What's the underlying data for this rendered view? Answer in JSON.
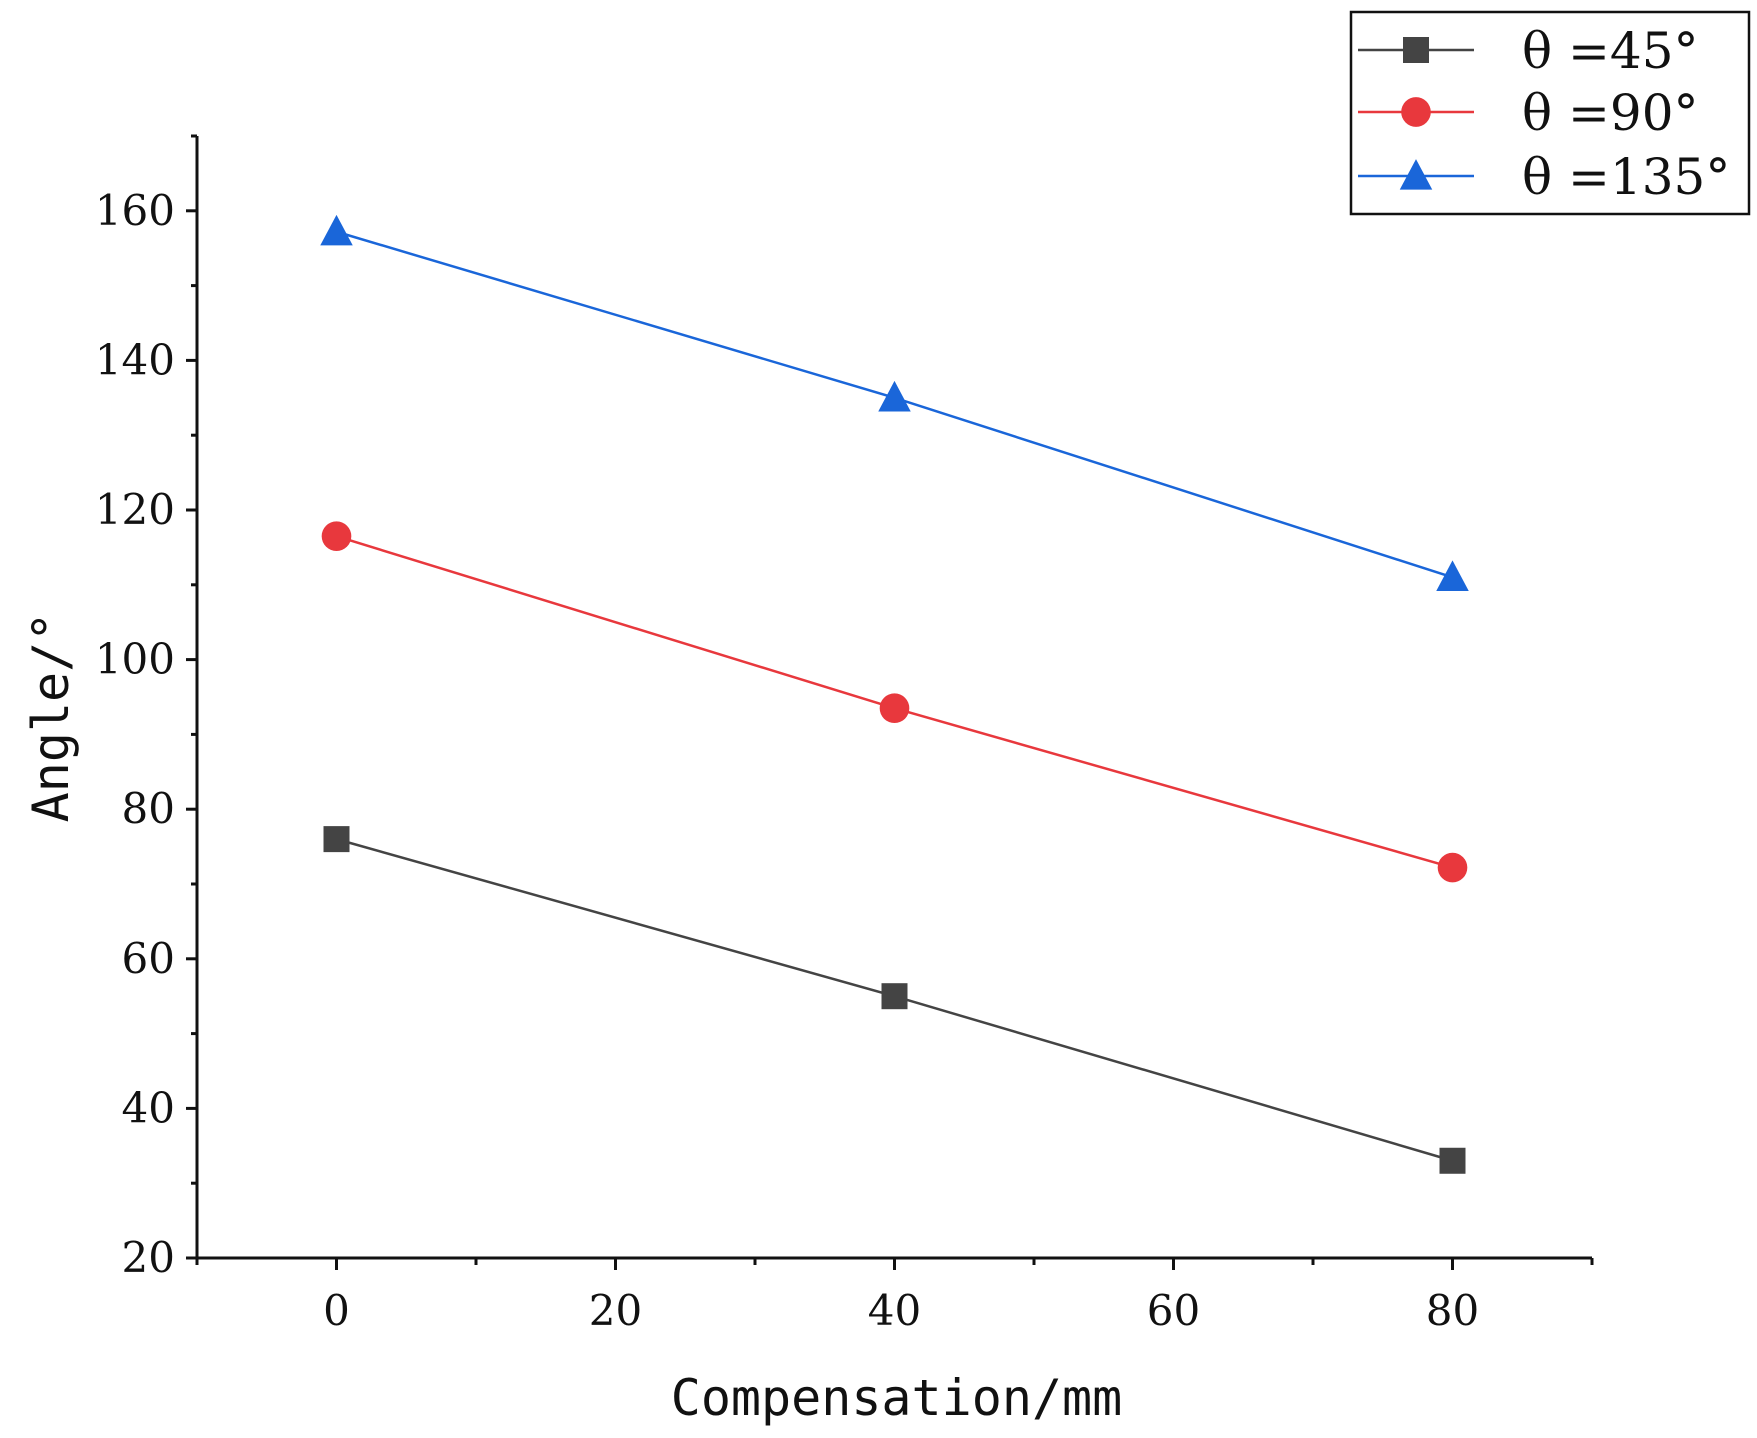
{
  "chart_data": {
    "type": "line",
    "title": "",
    "xlabel": "Compensation/mm",
    "ylabel": "Angle/°",
    "xlim": [
      -10,
      90
    ],
    "ylim": [
      20,
      170
    ],
    "x_ticks": [
      0,
      20,
      40,
      60,
      80
    ],
    "x_minor_ticks": [
      -10,
      10,
      30,
      50,
      70,
      90
    ],
    "y_ticks": [
      20,
      40,
      60,
      80,
      100,
      120,
      140,
      160
    ],
    "y_minor_ticks": [
      30,
      50,
      70,
      90,
      110,
      130,
      150,
      170
    ],
    "x_tick_labels": [
      "0",
      "20",
      "40",
      "60",
      "80"
    ],
    "y_tick_labels": [
      "20",
      "40",
      "60",
      "80",
      "100",
      "120",
      "140",
      "160"
    ],
    "grid": false,
    "legend_position": "top-right",
    "x": [
      0,
      40,
      80
    ],
    "series": [
      {
        "name": "θ =45°",
        "marker": "square",
        "color": "#444444",
        "values": [
          76,
          55,
          33
        ]
      },
      {
        "name": "θ =90°",
        "marker": "circle",
        "color": "#e8383d",
        "values": [
          116.5,
          93.5,
          72.2
        ]
      },
      {
        "name": "θ =135°",
        "marker": "triangle",
        "color": "#1a66d9",
        "values": [
          157.2,
          135,
          111
        ]
      }
    ]
  }
}
